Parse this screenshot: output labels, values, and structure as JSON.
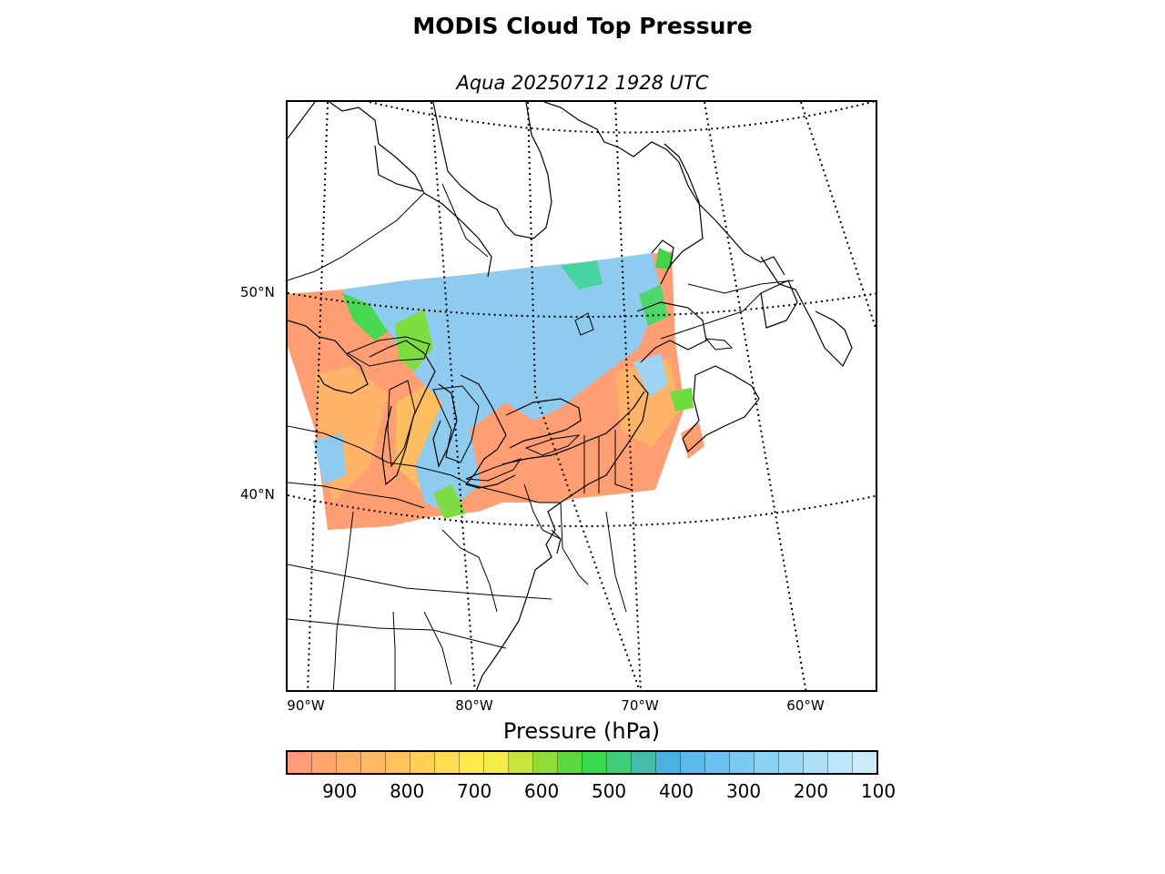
{
  "title": "MODIS Cloud Top Pressure",
  "subtitle": "Aqua 20250712 1928 UTC",
  "latitude_labels": [
    "50°N",
    "40°N"
  ],
  "longitude_labels": [
    "90°W",
    "80°W",
    "70°W",
    "60°W"
  ],
  "colorbar": {
    "title": "Pressure (hPa)",
    "tick_labels": [
      "900",
      "800",
      "700",
      "600",
      "500",
      "400",
      "300",
      "200",
      "100"
    ],
    "range_hpa": [
      980,
      100
    ],
    "colors": [
      "#ff9a7a",
      "#ffa66e",
      "#ffb068",
      "#ffb864",
      "#ffc35e",
      "#ffcf58",
      "#ffdd52",
      "#ffea4c",
      "#f5ec4a",
      "#c8e43e",
      "#92dc3a",
      "#5cd93c",
      "#38d94e",
      "#3fcc7c",
      "#44bcaa",
      "#4bb2df",
      "#5cbaec",
      "#6cc2f0",
      "#7ccaf2",
      "#8cd2f5",
      "#9cdaf7",
      "#acdff8",
      "#bce5fa",
      "#cdeafb"
    ]
  },
  "map_colors": {
    "low_cloud": "#ff9e72",
    "mid_cloud": "#ffc35e",
    "green_band": "#3fd44a",
    "high_cloud": "#8cc8ef",
    "coastline": "#000000"
  }
}
